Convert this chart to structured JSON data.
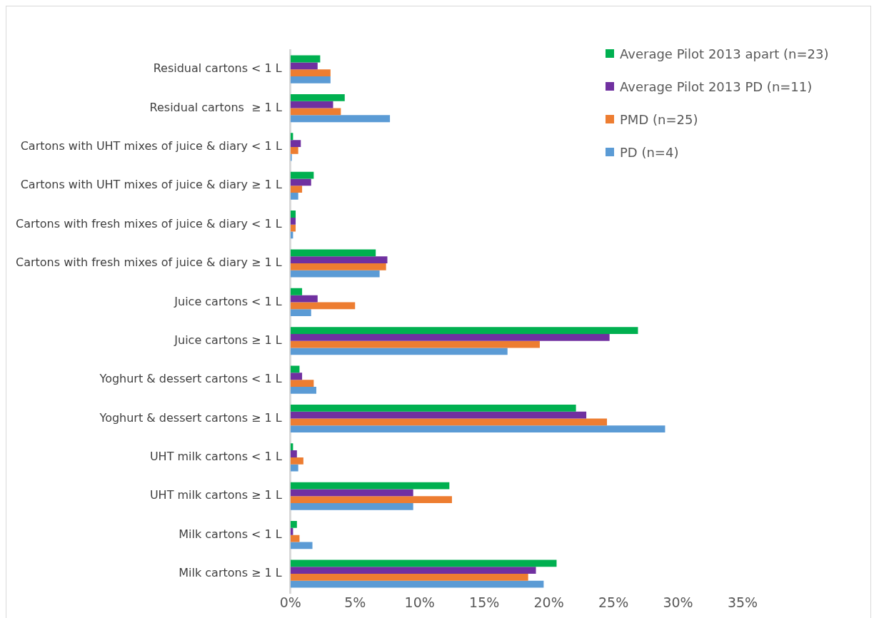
{
  "chart_data": {
    "type": "bar",
    "orientation": "horizontal",
    "categories": [
      "Residual cartons < 1 L",
      "Residual cartons  ≥ 1 L",
      "Cartons with UHT mixes of juice & diary < 1 L",
      "Cartons with UHT mixes of juice & diary ≥ 1 L",
      "Cartons with fresh mixes of juice & diary < 1 L",
      "Cartons with fresh mixes of juice & diary ≥ 1 L",
      "Juice cartons < 1 L",
      "Juice cartons ≥ 1 L",
      "Yoghurt & dessert cartons < 1 L",
      "Yoghurt & dessert cartons ≥ 1 L",
      "UHT milk cartons < 1 L",
      "UHT milk cartons ≥ 1 L",
      "Milk cartons < 1 L",
      "Milk cartons ≥ 1 L"
    ],
    "series": [
      {
        "name": "Average Pilot 2013 apart (n=23)",
        "color": "#00b050",
        "values": [
          2.3,
          4.2,
          0.2,
          1.8,
          0.4,
          6.6,
          0.9,
          26.9,
          0.7,
          22.1,
          0.2,
          12.3,
          0.5,
          20.6
        ]
      },
      {
        "name": "Average Pilot 2013  PD (n=11)",
        "color": "#7030a0",
        "values": [
          2.1,
          3.3,
          0.8,
          1.6,
          0.4,
          7.5,
          2.1,
          24.7,
          0.9,
          22.9,
          0.5,
          9.5,
          0.2,
          19.0
        ]
      },
      {
        "name": "PMD (n=25)",
        "color": "#ed7d31",
        "values": [
          3.1,
          3.9,
          0.6,
          0.9,
          0.4,
          7.4,
          5.0,
          19.3,
          1.8,
          24.5,
          1.0,
          12.5,
          0.7,
          18.4
        ]
      },
      {
        "name": "PD (n=4)",
        "color": "#5b9bd5",
        "values": [
          3.1,
          7.7,
          0.1,
          0.6,
          0.2,
          6.9,
          1.6,
          16.8,
          2.0,
          29.0,
          0.6,
          9.5,
          1.7,
          19.6
        ]
      }
    ],
    "xlim": [
      0,
      35
    ],
    "xticks": [
      {
        "value": 0,
        "label": "0%"
      },
      {
        "value": 5,
        "label": "5%"
      },
      {
        "value": 10,
        "label": "10%"
      },
      {
        "value": 15,
        "label": "15%"
      },
      {
        "value": 20,
        "label": "20%"
      },
      {
        "value": 25,
        "label": "25%"
      },
      {
        "value": 30,
        "label": "30%"
      },
      {
        "value": 35,
        "label": "35%"
      }
    ],
    "legend": "top right",
    "grid": false
  }
}
